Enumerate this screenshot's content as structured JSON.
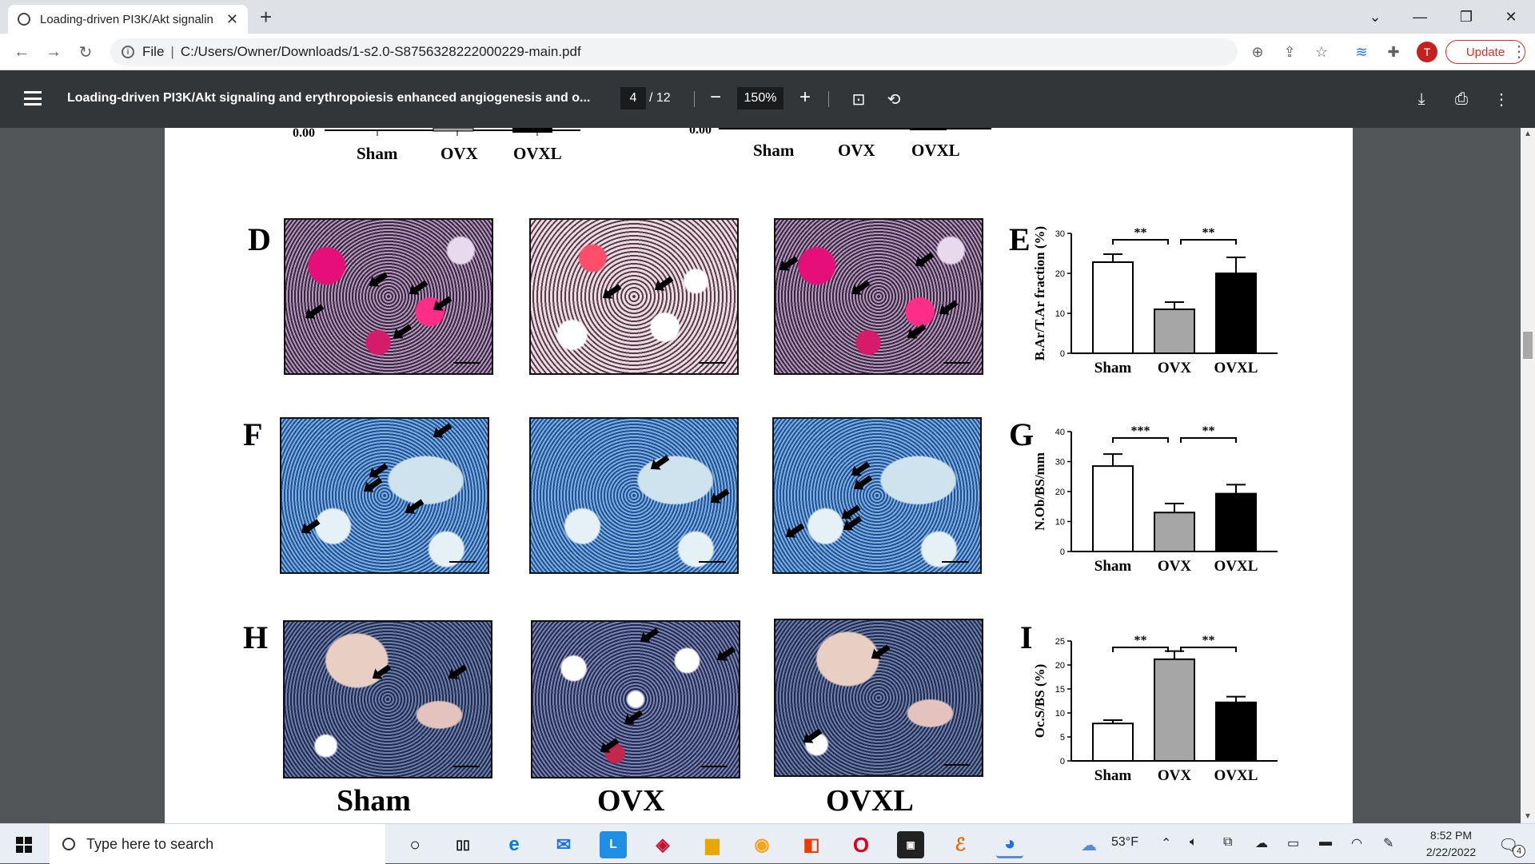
{
  "browser": {
    "tab_title": "Loading-driven PI3K/Akt signalin",
    "address_prefix": "File",
    "address_url": "C:/Users/Owner/Downloads/1-s2.0-S8756328222000229-main.pdf",
    "avatar_letter": "T",
    "update_label": "Update"
  },
  "pdf_toolbar": {
    "title": "Loading-driven PI3K/Akt signaling and erythropoiesis enhanced angiogenesis and o...",
    "current_page": "4",
    "total_pages": "/ 12",
    "zoom": "150%"
  },
  "figure": {
    "top_axis_zero_left": "0.00",
    "top_axis_zero_right": "0.00",
    "top_groups": [
      "Sham",
      "OVX",
      "OVXL"
    ],
    "panel_letters": [
      "D",
      "E",
      "F",
      "G",
      "H",
      "I"
    ],
    "bottom_labels": [
      "Sham",
      "OVX",
      "OVXL"
    ]
  },
  "chart_data": [
    {
      "type": "bar",
      "panel": "E",
      "categories": [
        "Sham",
        "OVX",
        "OVXL"
      ],
      "values": [
        22.8,
        11,
        20
      ],
      "errors": [
        2,
        1.8,
        4
      ],
      "ylabel": "B.Ar/T.Ar fraction (%)",
      "ylim": [
        0,
        30
      ],
      "yticks": [
        "0",
        "10",
        "20",
        "30"
      ],
      "significance": [
        "**",
        "**"
      ],
      "colors": [
        "#ffffff",
        "#a6a6a6",
        "#000000"
      ]
    },
    {
      "type": "bar",
      "panel": "G",
      "categories": [
        "Sham",
        "OVX",
        "OVXL"
      ],
      "values": [
        28.5,
        13,
        19.3
      ],
      "errors": [
        4,
        3,
        3
      ],
      "ylabel": "N.Ob/BS/mm",
      "ylim": [
        0,
        40
      ],
      "yticks": [
        "0",
        "10",
        "20",
        "30",
        "40"
      ],
      "significance": [
        "***",
        "**"
      ],
      "colors": [
        "#ffffff",
        "#a6a6a6",
        "#000000"
      ]
    },
    {
      "type": "bar",
      "panel": "I",
      "categories": [
        "Sham",
        "OVX",
        "OVXL"
      ],
      "values": [
        7.8,
        21.2,
        12.2
      ],
      "errors": [
        0.7,
        1.7,
        1.2
      ],
      "ylabel": "Oc.S/BS (%)",
      "ylim": [
        0,
        25
      ],
      "yticks": [
        "0",
        "5",
        "10",
        "15",
        "20",
        "25"
      ],
      "significance": [
        "**",
        "**"
      ],
      "colors": [
        "#ffffff",
        "#a6a6a6",
        "#000000"
      ]
    }
  ],
  "taskbar": {
    "search_placeholder": "Type here to search",
    "weather": "53°F",
    "time": "8:52 PM",
    "date": "2/22/2022",
    "notification_count": "4"
  }
}
